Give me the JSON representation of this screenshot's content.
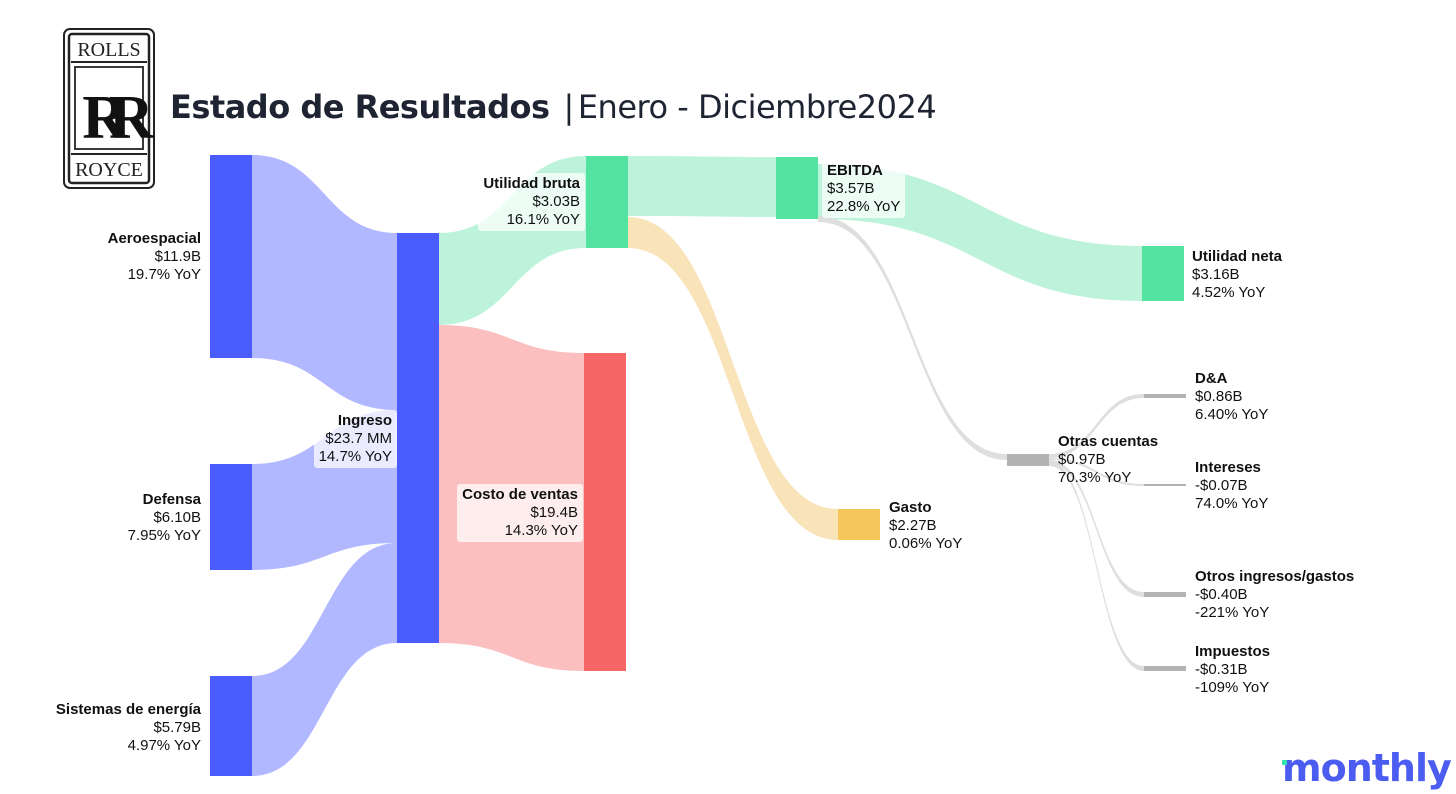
{
  "header": {
    "logo": {
      "top": "ROLLS",
      "bottom": "ROYCE",
      "monogram": "RR"
    },
    "title_main": "Estado de Resultados",
    "separator": "|",
    "title_period": "Enero - Diciembre2024"
  },
  "brand": {
    "name": "monthly"
  },
  "colors": {
    "revenue_blue": "#4b5cff",
    "revenue_flow": "#aeb4ff",
    "green": "#52e3a0",
    "green_flow": "#b9f2d9",
    "red": "#f56666",
    "red_flow": "#fbbcbc",
    "gold": "#f5c65a",
    "gold_flow": "#f9e1b4",
    "gray": "#b3b3b3",
    "gray_flow": "#dcdcdc"
  },
  "chart_data": {
    "type": "sankey",
    "title": "Estado de Resultados | Enero - Diciembre2024",
    "units": "USD billions",
    "nodes": [
      {
        "id": "aero",
        "name": "Aeroespacial",
        "value": "$11.9B",
        "yoy": "19.7% YoY",
        "amount": 11.9
      },
      {
        "id": "defensa",
        "name": "Defensa",
        "value": "$6.10B",
        "yoy": "7.95% YoY",
        "amount": 6.1
      },
      {
        "id": "energia",
        "name": "Sistemas de energía",
        "value": "$5.79B",
        "yoy": "4.97% YoY",
        "amount": 5.79
      },
      {
        "id": "ingreso",
        "name": "Ingreso",
        "value": "$23.7 MM",
        "yoy": "14.7% YoY",
        "amount": 23.7
      },
      {
        "id": "bruta",
        "name": "Utilidad bruta",
        "value": "$3.03B",
        "yoy": "16.1% YoY",
        "amount": 3.03
      },
      {
        "id": "costo",
        "name": "Costo de ventas",
        "value": "$19.4B",
        "yoy": "14.3% YoY",
        "amount": 19.4
      },
      {
        "id": "ebitda",
        "name": "EBITDA",
        "value": "$3.57B",
        "yoy": "22.8% YoY",
        "amount": 3.57
      },
      {
        "id": "gasto",
        "name": "Gasto",
        "value": "$2.27B",
        "yoy": "0.06% YoY",
        "amount": 2.27
      },
      {
        "id": "neta",
        "name": "Utilidad neta",
        "value": "$3.16B",
        "yoy": "4.52% YoY",
        "amount": 3.16
      },
      {
        "id": "otras",
        "name": "Otras cuentas",
        "value": "$0.97B",
        "yoy": "70.3% YoY",
        "amount": 0.97
      },
      {
        "id": "da",
        "name": "D&A",
        "value": "$0.86B",
        "yoy": "6.40% YoY",
        "amount": 0.86
      },
      {
        "id": "intereses",
        "name": "Intereses",
        "value": "-$0.07B",
        "yoy": "74.0% YoY",
        "amount": -0.07
      },
      {
        "id": "otrosig",
        "name": "Otros ingresos/gastos",
        "value": "-$0.40B",
        "yoy": "-221% YoY",
        "amount": -0.4
      },
      {
        "id": "impuestos",
        "name": "Impuestos",
        "value": "-$0.31B",
        "yoy": "-109% YoY",
        "amount": -0.31
      }
    ],
    "links": [
      {
        "source": "aero",
        "target": "ingreso",
        "value": 11.9
      },
      {
        "source": "defensa",
        "target": "ingreso",
        "value": 6.1
      },
      {
        "source": "energia",
        "target": "ingreso",
        "value": 5.79
      },
      {
        "source": "ingreso",
        "target": "bruta",
        "value": 3.03
      },
      {
        "source": "ingreso",
        "target": "costo",
        "value": 19.4
      },
      {
        "source": "bruta",
        "target": "ebitda",
        "value": 3.03
      },
      {
        "source": "bruta",
        "target": "gasto",
        "value": 2.27
      },
      {
        "source": "ebitda",
        "target": "neta",
        "value": 3.16
      },
      {
        "source": "ebitda",
        "target": "otras",
        "value": 0.97
      },
      {
        "source": "otras",
        "target": "da",
        "value": 0.86
      },
      {
        "source": "otras",
        "target": "intereses",
        "value": 0.07
      },
      {
        "source": "otras",
        "target": "otrosig",
        "value": 0.4
      },
      {
        "source": "otras",
        "target": "impuestos",
        "value": 0.31
      }
    ]
  }
}
